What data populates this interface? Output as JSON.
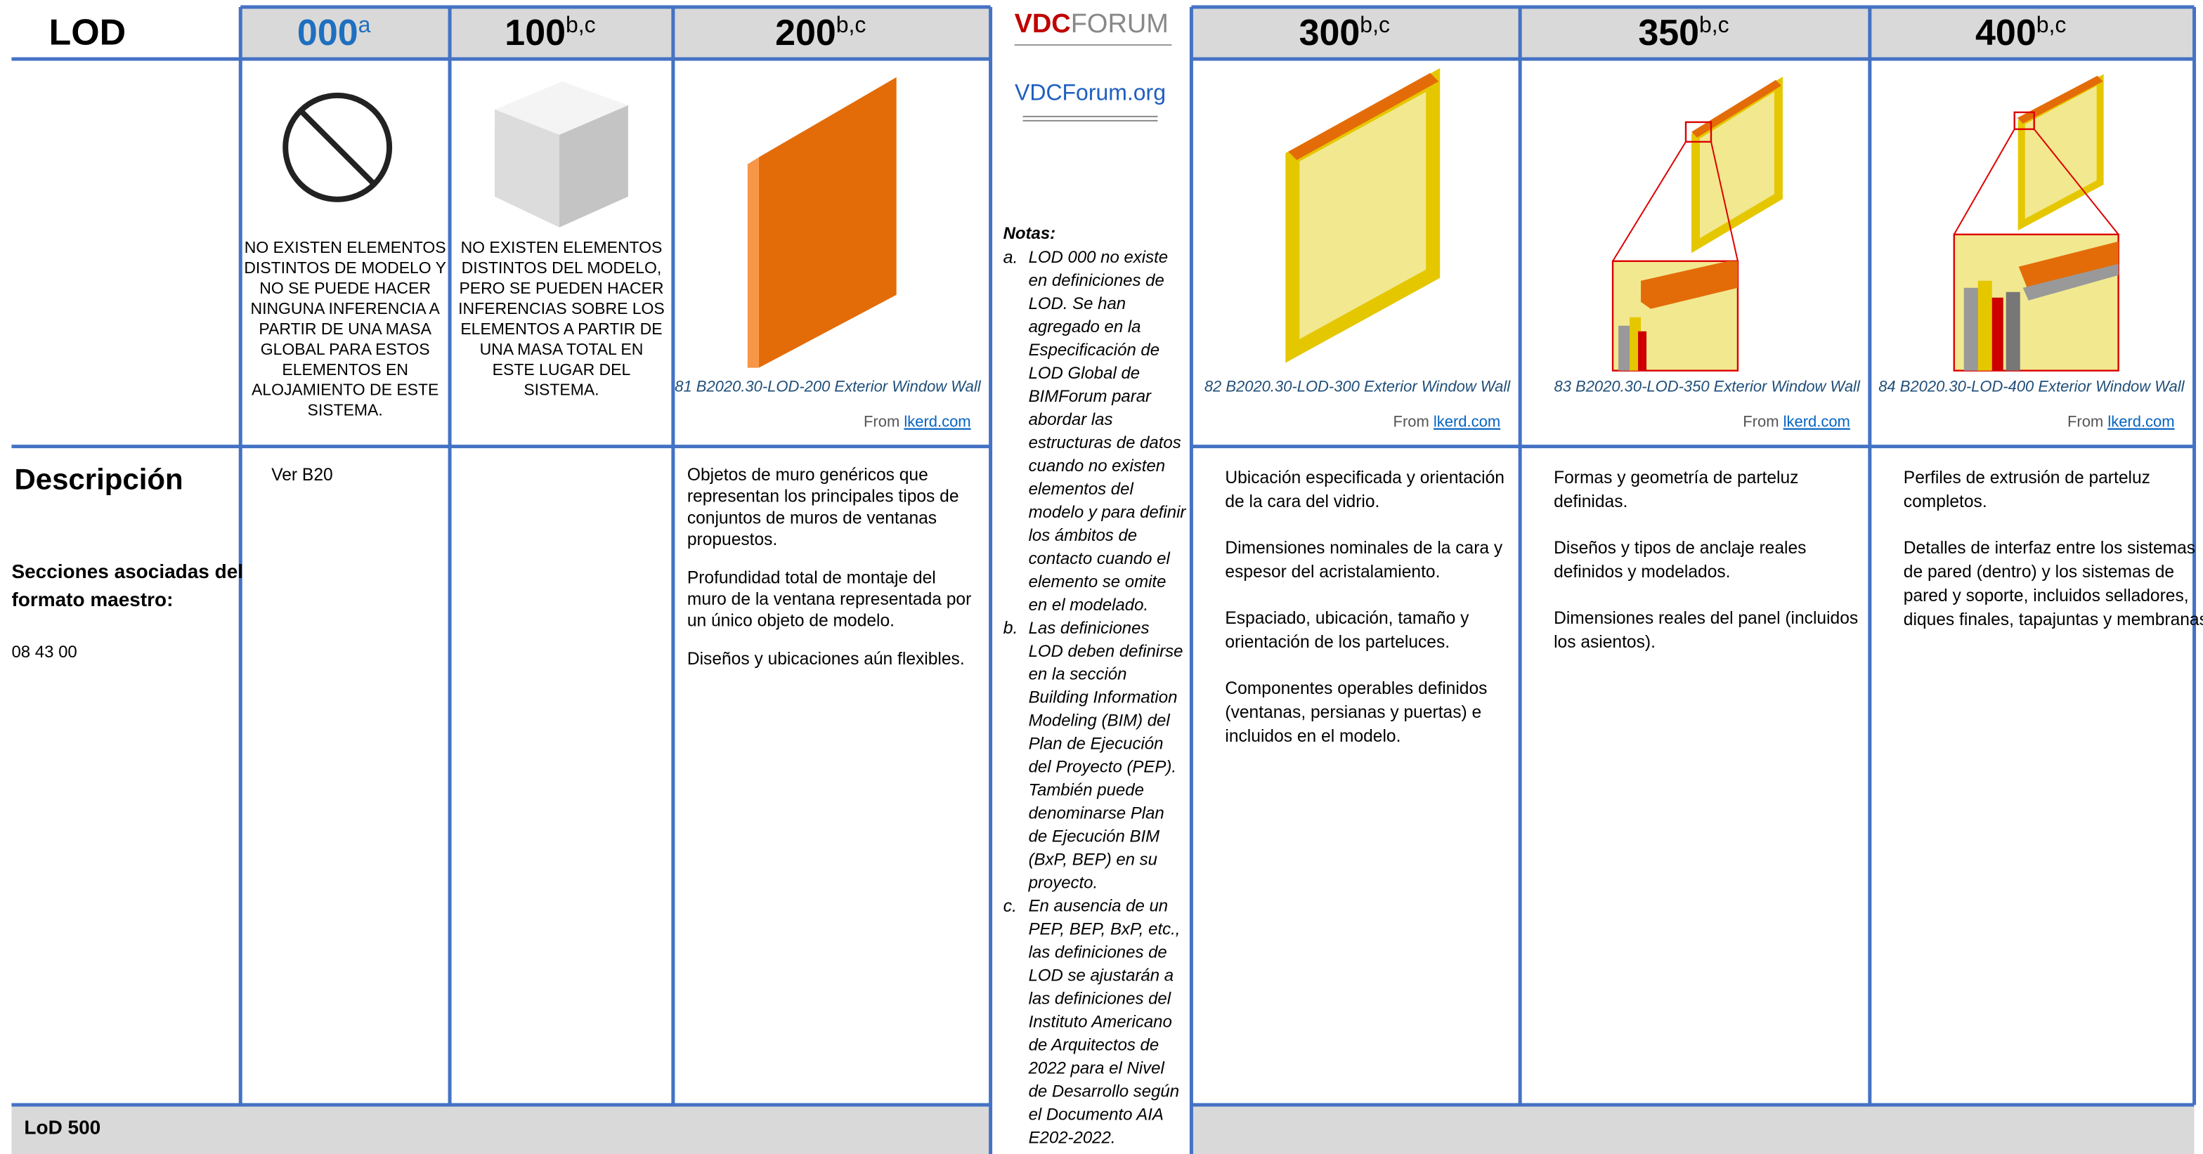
{
  "header": {
    "lod_label": "LOD"
  },
  "left_label": {
    "description_title": "Descripción",
    "sections_lines": [
      "Secciones asociadas del",
      "formato maestro:"
    ],
    "section_code": "08 43 00"
  },
  "left_columns": [
    {
      "lod": "000",
      "superscript": "a",
      "note_lines": [
        "NO EXISTEN ELEMENTOS",
        "DISTINTOS DE MODELO  Y",
        "NO SE PUEDE HACER",
        "NINGUNA INFERENCIA A",
        "PARTIR DE UNA MASA",
        "GLOBAL PARA ESTOS",
        "ELEMENTOS EN",
        "ALOJAMIENTO DE ESTE",
        "SISTEMA."
      ],
      "description": [
        [
          "Ver B20"
        ]
      ]
    },
    {
      "lod": "100",
      "superscript": "b,c",
      "note_lines": [
        "NO EXISTEN ELEMENTOS",
        "DISTINTOS DEL MODELO,",
        "PERO SE PUEDEN HACER",
        "INFERENCIAS SOBRE LOS",
        "ELEMENTOS A PARTIR DE",
        "UNA MASA TOTAL EN",
        "ESTE LUGAR DEL",
        "SISTEMA."
      ]
    },
    {
      "lod": "200",
      "superscript": "b,c",
      "caption": "81 B2020.30-LOD-200 Exterior Window Wall",
      "source_prefix": "From",
      "source_link": "lkerd.com",
      "description": [
        [
          "Objetos de muro genéricos que",
          "representan los principales tipos de",
          "conjuntos de muros de ventanas",
          "propuestos."
        ],
        [
          "Profundidad total de montaje del",
          "muro de la ventana representada por",
          "un único objeto de modelo."
        ],
        [
          "Diseños y ubicaciones aún flexibles."
        ]
      ]
    }
  ],
  "right_columns": [
    {
      "lod": "300",
      "superscript": "b,c",
      "caption": "82 B2020.30-LOD-300 Exterior Window Wall",
      "source_prefix": "From",
      "source_link": "lkerd.com",
      "description": [
        [
          "Ubicación especificada y orientación",
          "de la cara del vidrio."
        ],
        [
          "Dimensiones nominales de la cara y",
          "espesor del acristalamiento."
        ],
        [
          "Espaciado, ubicación, tamaño y",
          "orientación de los parteluces."
        ],
        [
          "Componentes operables definidos",
          "(ventanas, persianas y puertas) e",
          "incluidos en el modelo."
        ]
      ]
    },
    {
      "lod": "350",
      "superscript": "b,c",
      "caption": "83 B2020.30-LOD-350 Exterior Window Wall",
      "source_prefix": "From",
      "source_link": "lkerd.com",
      "description": [
        [
          "Formas y geometría de parteluz",
          "definidas."
        ],
        [
          "Diseños y tipos de anclaje reales",
          "definidos y modelados."
        ],
        [
          "Dimensiones reales del panel (incluidos",
          "los asientos)."
        ]
      ]
    },
    {
      "lod": "400",
      "superscript": "b,c",
      "caption": "84 B2020.30-LOD-400 Exterior Window Wall",
      "source_prefix": "From",
      "source_link": "lkerd.com",
      "description": [
        [
          "Perfiles de extrusión de parteluz",
          "completos."
        ],
        [
          "Detalles de interfaz entre los sistemas",
          "de pared (dentro) y los sistemas de",
          "pared y soporte, incluidos selladores,",
          "diques finales, tapajuntas y membranas."
        ]
      ]
    }
  ],
  "middle": {
    "logo_vdc": "VDC",
    "logo_forum": "FORUM",
    "link": "VDCForum.org",
    "notes_title": "Notas:",
    "notes": [
      {
        "letter": "a.",
        "lines": [
          "LOD 000 no existe",
          "en definiciones de",
          "LOD. Se han",
          "agregado en la",
          "Especificación de",
          "LOD Global de",
          "BIMForum parar",
          "abordar las",
          "estructuras de datos",
          "cuando no existen",
          "elementos del",
          "modelo y para definir",
          "los ámbitos de",
          "contacto cuando el",
          "elemento se omite",
          "en el modelado."
        ]
      },
      {
        "letter": "b.",
        "lines": [
          "Las definiciones",
          "LOD deben definirse",
          "en la sección",
          "Building Information",
          "Modeling (BIM) del",
          "Plan de Ejecución",
          "del Proyecto (PEP).",
          "También puede",
          "denominarse Plan",
          "de Ejecución BIM",
          "(BxP, BEP) en su",
          "proyecto."
        ]
      },
      {
        "letter": "c.",
        "lines": [
          "En ausencia de un",
          "PEP, BEP, BxP, etc.,",
          "las definiciones de",
          "LOD se ajustarán a",
          "las definiciones del",
          "Instituto Americano",
          "de Arquitectos de",
          "2022 para el Nivel",
          "de Desarrollo según",
          "el Documento AIA",
          "E202-2022."
        ]
      }
    ]
  },
  "footer": {
    "label": "LoD 500"
  }
}
